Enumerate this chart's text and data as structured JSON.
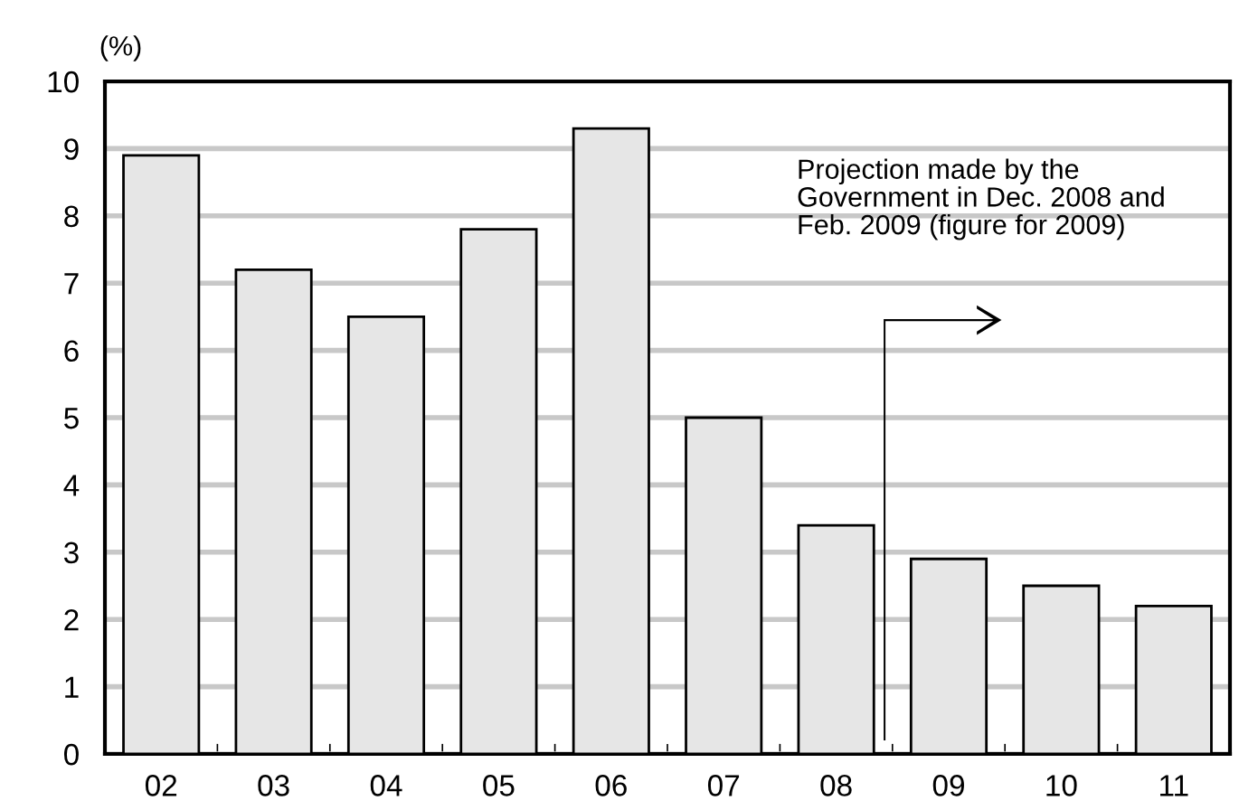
{
  "chart_data": {
    "type": "bar",
    "ylabel": "(%)",
    "categories": [
      "02",
      "03",
      "04",
      "05",
      "06",
      "07",
      "08",
      "09",
      "10",
      "11"
    ],
    "values": [
      8.9,
      7.2,
      6.5,
      7.8,
      9.3,
      5.0,
      3.4,
      2.9,
      2.5,
      2.2
    ],
    "color": "#e6e6e6",
    "ylim": [
      0,
      10
    ],
    "yticks": [
      0,
      1,
      2,
      3,
      4,
      5,
      6,
      7,
      8,
      9,
      10
    ],
    "grid": "y",
    "annotations": [
      "Projection made by the\nGovernment in Dec. 2008 and\nFeb. 2009 (figure for 2009)"
    ]
  }
}
